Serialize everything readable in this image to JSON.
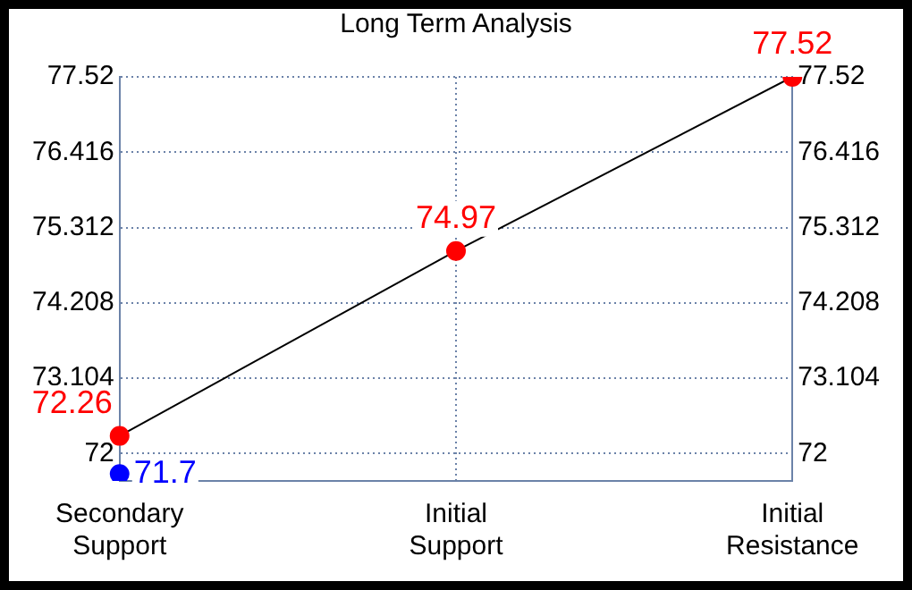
{
  "chart_data": {
    "type": "line",
    "title": "Long Term Analysis",
    "categories": [
      "Secondary Support",
      "Initial Support",
      "Initial Resistance"
    ],
    "series": [
      {
        "color": "#ff0000",
        "values": [
          72.26,
          74.97,
          77.52
        ]
      },
      {
        "type": "scatter",
        "color": "#0000ff",
        "values": [
          71.7,
          null,
          null
        ]
      }
    ],
    "ylim": [
      71.6,
      77.52
    ],
    "yticks": [
      72,
      73.104,
      74.208,
      75.312,
      76.416,
      77.52
    ],
    "y2lim": [
      71.6,
      77.52
    ],
    "y2ticks": [
      72,
      73.104,
      74.208,
      75.312,
      76.416,
      77.52
    ],
    "grid": true,
    "marker": "circle",
    "data_labels": true
  }
}
